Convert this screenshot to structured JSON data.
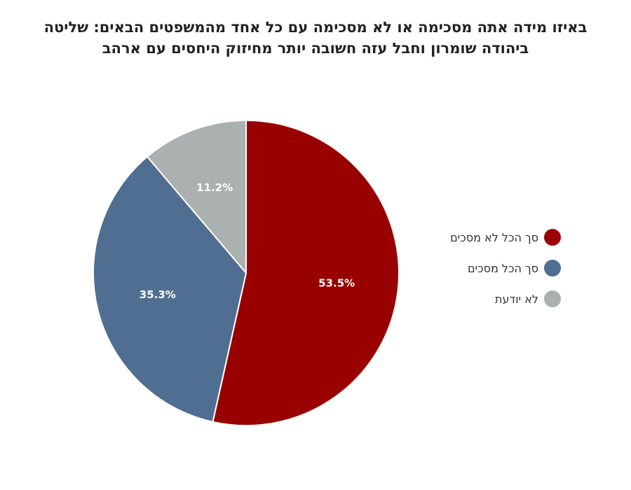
{
  "title_lines": [
    "באיזו מידה אתה מסכימה או לא מסכימה עם כל אחד מהמשפטים הבאים: שליטה",
    "ביהודה שומרון וחבל עזה חשובה יותר מחיזוק היחסים עם ארהב"
  ],
  "chart_data": {
    "type": "pie",
    "title": "באיזו מידה אתה מסכימה או לא מסכימה עם כל אחד מהמשפטים הבאים: שליטה ביהודה שומרון וחבל עזה חשובה יותר מחיזוק היחסים עם ארהב",
    "slices": [
      {
        "label": "סך הכל לא מסכים",
        "value": 53.5,
        "value_label": "53.5%",
        "color": "#990000"
      },
      {
        "label": "סך הכל מסכים",
        "value": 35.3,
        "value_label": "35.3%",
        "color": "#506E91"
      },
      {
        "label": "לא יודעת",
        "value": 11.2,
        "value_label": "11.2%",
        "color": "#ABB0B0"
      }
    ],
    "start": "12 o'clock",
    "direction": "clockwise",
    "legend_position": "right"
  }
}
